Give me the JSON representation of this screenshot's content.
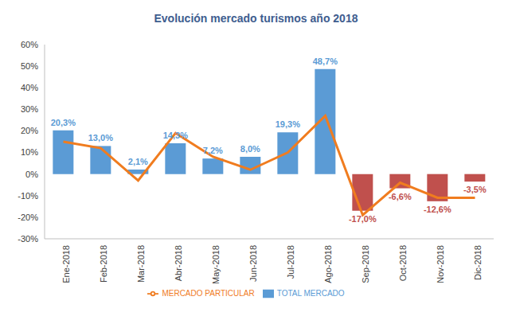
{
  "chart_data": {
    "type": "bar",
    "title": "Evolución mercado turismos año 2018",
    "categories": [
      "Ene-2018",
      "Feb-2018",
      "Mar-2018",
      "Abr-2018",
      "May-2018",
      "Jun-2018",
      "Jul-2018",
      "Ago-2018",
      "Sep-2018",
      "Oct-2018",
      "Nov-2018",
      "Dic-2018"
    ],
    "series": [
      {
        "name": "TOTAL MERCADO",
        "type": "bar",
        "color": "#5b9bd5",
        "colors": [
          "#5b9bd5",
          "#5b9bd5",
          "#5b9bd5",
          "#5b9bd5",
          "#5b9bd5",
          "#5b9bd5",
          "#5b9bd5",
          "#5b9bd5",
          "#c0504d",
          "#c0504d",
          "#c0504d",
          "#c0504d"
        ],
        "values": [
          20.3,
          13.0,
          2.1,
          14.3,
          7.2,
          8.0,
          19.3,
          48.7,
          -17.0,
          -6.6,
          -12.6,
          -3.5
        ],
        "value_labels": [
          "20,3%",
          "13,0%",
          "2,1%",
          "14,3%",
          "7,2%",
          "8,0%",
          "19,3%",
          "48,7%",
          "-17,0%",
          "-6,6%",
          "-12,6%",
          "-3,5%"
        ],
        "data_labels": true
      },
      {
        "name": "MERCADO PARTICULAR",
        "type": "line",
        "color": "#f07c1f",
        "values": [
          15,
          12,
          -3,
          19,
          8,
          2,
          10,
          27,
          -19,
          -4,
          -11,
          -11
        ]
      }
    ],
    "ylim": [
      -30,
      60
    ],
    "yticks": [
      {
        "value": -30,
        "label": "-30%"
      },
      {
        "value": -20,
        "label": "-20%"
      },
      {
        "value": -10,
        "label": "-10%"
      },
      {
        "value": 0,
        "label": "0%"
      },
      {
        "value": 10,
        "label": "10%"
      },
      {
        "value": 20,
        "label": "20%"
      },
      {
        "value": 30,
        "label": "30%"
      },
      {
        "value": 40,
        "label": "40%"
      },
      {
        "value": 50,
        "label": "50%"
      },
      {
        "value": 60,
        "label": "60%"
      }
    ],
    "grid": false,
    "legend": "bottom"
  }
}
